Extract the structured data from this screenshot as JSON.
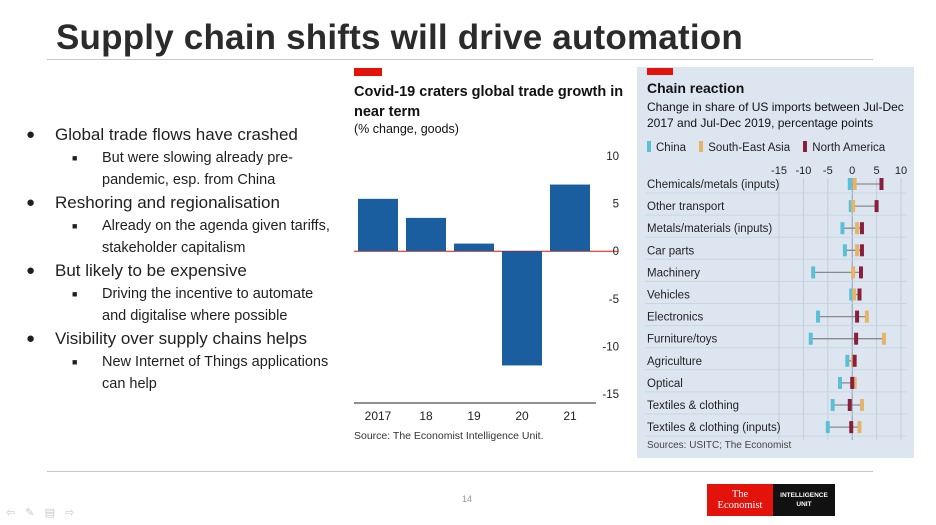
{
  "slide": {
    "title": "Supply chain shifts will drive automation",
    "page_number": "14"
  },
  "bullets": [
    {
      "text": "Global trade flows have crashed",
      "subs": [
        "But were slowing already pre-pandemic, esp. from China"
      ]
    },
    {
      "text": "Reshoring and regionalisation",
      "subs": [
        "Already on the agenda given tariffs, stakeholder capitalism"
      ]
    },
    {
      "text": "But likely to be expensive",
      "subs": [
        "Driving the incentive to automate and digitalise where possible"
      ]
    },
    {
      "text": "Visibility over supply chains helps",
      "subs": [
        "New Internet of Things applications can help"
      ]
    }
  ],
  "chart1": {
    "title": "Covid-19 craters global trade growth in near term",
    "subtitle": "(% change, goods)",
    "source": "Source: The Economist Intelligence Unit."
  },
  "chart2": {
    "title": "Chain reaction",
    "subtitle": "Change in share of US imports between Jul-Dec 2017 and Jul-Dec 2019, percentage points",
    "source": "Sources: USITC; The Economist",
    "legend": [
      {
        "name": "China",
        "color": "#5bc0d5"
      },
      {
        "name": "South-East Asia",
        "color": "#e3b46a"
      },
      {
        "name": "North America",
        "color": "#8a1f3c"
      }
    ]
  },
  "logo": {
    "economist_line1": "The",
    "economist_line2": "Economist",
    "eiu_line1": "INTELLIGENCE",
    "eiu_line2": "UNIT"
  },
  "nav_icons": [
    "back-arrow-icon",
    "pen-icon",
    "menu-icon",
    "forward-arrow-icon"
  ],
  "chart_data": [
    {
      "type": "bar",
      "title": "Covid-19 craters global trade growth in near term",
      "subtitle": "(% change, goods)",
      "categories": [
        "2017",
        "18",
        "19",
        "20",
        "21"
      ],
      "values": [
        5.5,
        3.5,
        0.8,
        -12,
        7
      ],
      "ylim": [
        -15,
        10
      ],
      "yticks": [
        10,
        5,
        0,
        -5,
        -10,
        -15
      ],
      "bar_color": "#1b5ea0",
      "zero_line_color": "#e3120b"
    },
    {
      "type": "scatter",
      "title": "Chain reaction",
      "subtitle": "Change in share of US imports between Jul-Dec 2017 and Jul-Dec 2019, percentage points",
      "categories": [
        "Chemicals/metals (inputs)",
        "Other transport",
        "Metals/materials (inputs)",
        "Car parts",
        "Machinery",
        "Vehicles",
        "Electronics",
        "Furniture/toys",
        "Agriculture",
        "Optical",
        "Textiles & clothing",
        "Textiles & clothing (inputs)"
      ],
      "xlim": [
        -15,
        10
      ],
      "xticks": [
        -15,
        -10,
        -5,
        0,
        5,
        10
      ],
      "series": [
        {
          "name": "China",
          "color": "#5bc0d5",
          "values": [
            -0.5,
            -0.3,
            -2,
            -1.5,
            -8,
            -0.2,
            -7,
            -8.5,
            -1,
            -2.5,
            -4,
            -5
          ]
        },
        {
          "name": "South-East Asia",
          "color": "#e3b46a",
          "values": [
            0.5,
            0.2,
            1,
            1,
            0.2,
            0.4,
            3,
            6.5,
            0.2,
            0.5,
            2,
            1.5
          ]
        },
        {
          "name": "North America",
          "color": "#8a1f3c",
          "values": [
            6,
            5,
            2,
            2,
            1.8,
            1.5,
            1,
            0.8,
            0.5,
            0,
            -0.5,
            -0.2
          ]
        }
      ],
      "grid": true,
      "legend_placement": "top"
    }
  ]
}
